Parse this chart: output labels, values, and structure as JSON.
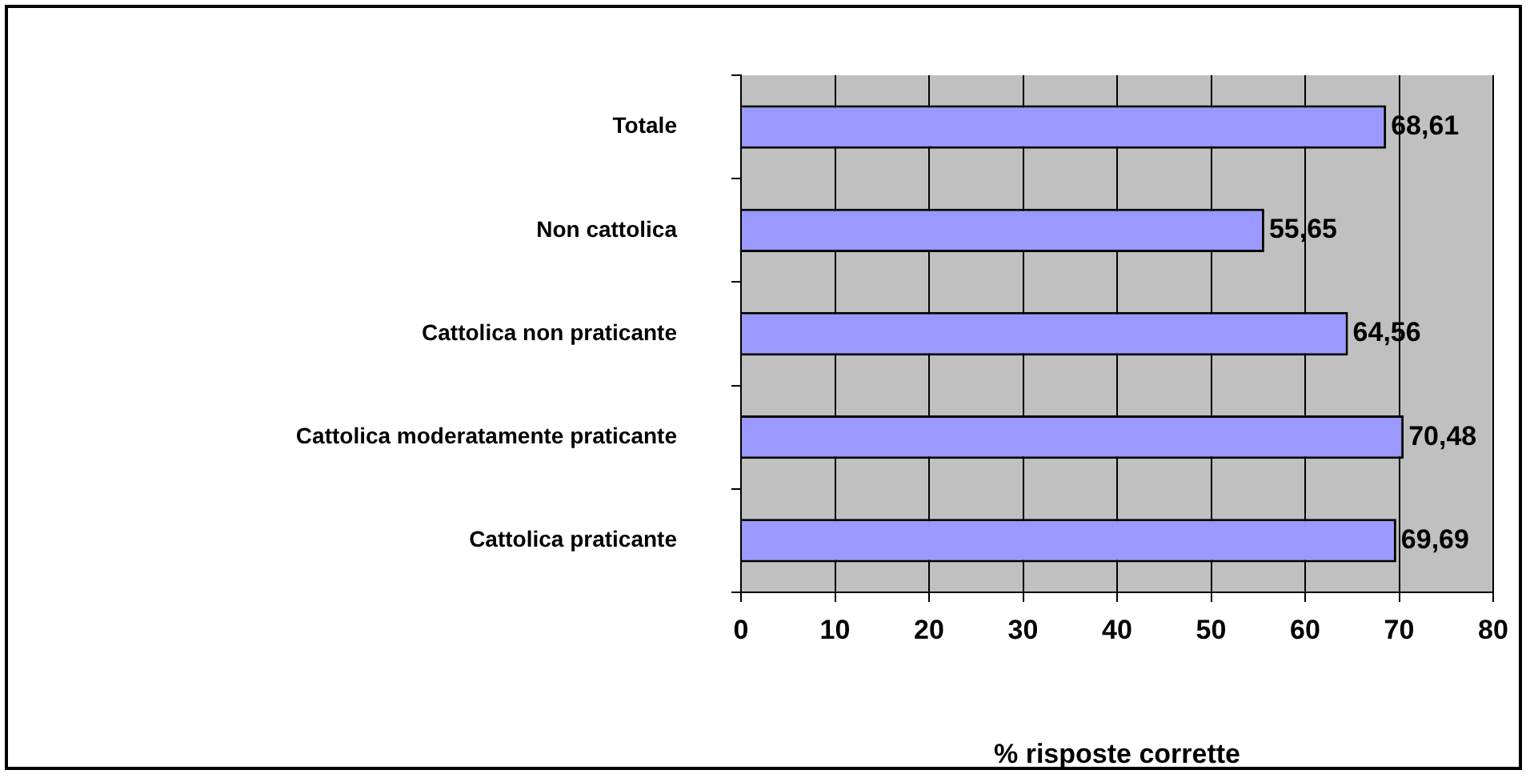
{
  "chart_data": {
    "type": "bar",
    "orientation": "horizontal",
    "xlabel": "% risposte corrette",
    "categories": [
      "Totale",
      "Non cattolica",
      "Cattolica non praticante",
      "Cattolica moderatamente praticante",
      "Cattolica praticante"
    ],
    "values": [
      68.61,
      55.65,
      64.56,
      70.48,
      69.69
    ],
    "value_labels": [
      "68,61",
      "55,65",
      "64,56",
      "70,48",
      "69,69"
    ],
    "color": "#9999ff",
    "xlim": [
      0,
      80
    ],
    "xticks": [
      0,
      10,
      20,
      30,
      40,
      50,
      60,
      70,
      80
    ],
    "grid": "x",
    "legend": false
  }
}
